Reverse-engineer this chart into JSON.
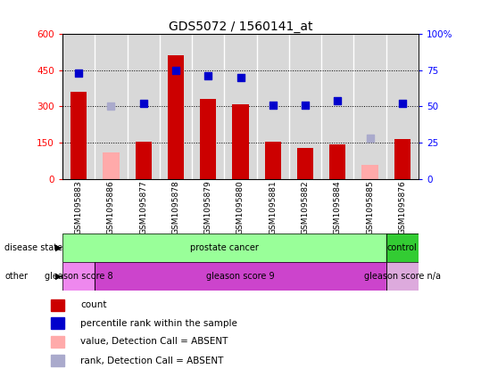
{
  "title": "GDS5072 / 1560141_at",
  "samples": [
    "GSM1095883",
    "GSM1095886",
    "GSM1095877",
    "GSM1095878",
    "GSM1095879",
    "GSM1095880",
    "GSM1095881",
    "GSM1095882",
    "GSM1095884",
    "GSM1095885",
    "GSM1095876"
  ],
  "count_values": [
    360,
    null,
    155,
    510,
    330,
    310,
    155,
    130,
    145,
    null,
    165
  ],
  "count_absent": [
    null,
    110,
    null,
    null,
    null,
    null,
    null,
    null,
    null,
    60,
    null
  ],
  "rank_values": [
    73,
    null,
    52,
    75,
    71,
    70,
    51,
    51,
    54,
    null,
    52
  ],
  "rank_absent": [
    null,
    50,
    null,
    null,
    null,
    null,
    null,
    null,
    null,
    28,
    null
  ],
  "disease_state": [
    "prostate cancer",
    "prostate cancer",
    "prostate cancer",
    "prostate cancer",
    "prostate cancer",
    "prostate cancer",
    "prostate cancer",
    "prostate cancer",
    "prostate cancer",
    "prostate cancer",
    "control"
  ],
  "other": [
    "gleason score 8",
    "gleason score 9",
    "gleason score 9",
    "gleason score 9",
    "gleason score 9",
    "gleason score 9",
    "gleason score 9",
    "gleason score 9",
    "gleason score 9",
    "gleason score 9",
    "gleason score n/a"
  ],
  "ylim_left": [
    0,
    600
  ],
  "ylim_right": [
    0,
    100
  ],
  "yticks_left": [
    0,
    150,
    300,
    450,
    600
  ],
  "yticks_right": [
    0,
    25,
    50,
    75,
    100
  ],
  "bar_color": "#cc0000",
  "bar_absent_color": "#ffaaaa",
  "dot_color": "#0000cc",
  "dot_absent_color": "#aaaacc",
  "hline_values": [
    150,
    300,
    450
  ],
  "disease_colors": {
    "prostate cancer": "#99ff99",
    "control": "#33cc33"
  },
  "other_colors": {
    "gleason score 8": "#ee88ee",
    "gleason score 9": "#cc44cc",
    "gleason score n/a": "#ddaadd"
  },
  "bar_width": 0.5,
  "dot_size": 38,
  "label_fontsize": 6.5,
  "tick_fontsize": 7.5,
  "title_fontsize": 10,
  "annotation_fontsize": 7,
  "legend_fontsize": 7.5,
  "plot_bg": "#d8d8d8",
  "cell_border": "white"
}
